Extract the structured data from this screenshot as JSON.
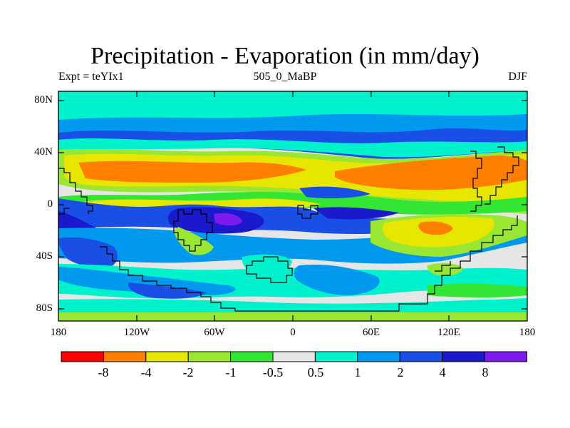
{
  "title": "Precipitation - Evaporation (in mm/day)",
  "subtitle_left": "Expt = teYIx1",
  "subtitle_center": "505_0_MaBP",
  "subtitle_right": "DJF",
  "y_ticks": [
    "80N",
    "40N",
    "0",
    "40S",
    "80S"
  ],
  "x_ticks": [
    "180",
    "120W",
    "60W",
    "0",
    "60E",
    "120E",
    "180"
  ],
  "colorbar": {
    "labels": [
      "-8",
      "-4",
      "-2",
      "-1",
      "-0.5",
      "0.5",
      "1",
      "2",
      "4",
      "8"
    ],
    "colors": [
      "#ff0000",
      "#ff7f00",
      "#e6e600",
      "#99e633",
      "#33e633",
      "#e6e6e6",
      "#00f2cc",
      "#0099ee",
      "#1a4fe6",
      "#1a1acc",
      "#7f1aee"
    ]
  },
  "colors": {
    "land_outline": "#000000",
    "background": "#ffffff"
  }
}
